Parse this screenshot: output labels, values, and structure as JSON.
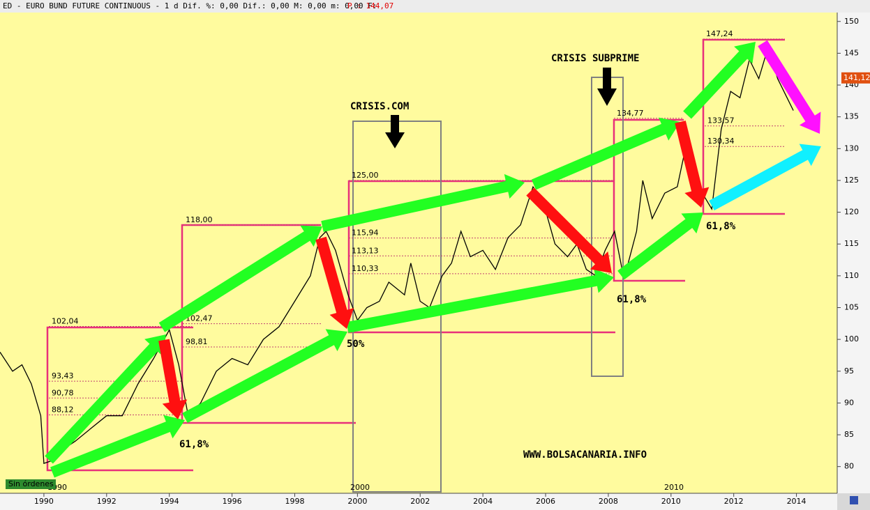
{
  "header": {
    "text": "ED - EURO BUND FUTURE CONTINUOUS -  1 d Dif. %: 0,00 Dif.: 0,00 M: 0,00 m: 0,00 F:",
    "price": "P : 144,07"
  },
  "status": "Sin órdenes",
  "chart_data": {
    "type": "line",
    "x": [
      1988.6,
      1989.0,
      1989.3,
      1989.6,
      1989.9,
      1990.0,
      1990.3,
      1990.7,
      1991.0,
      1991.5,
      1992.0,
      1992.5,
      1993.0,
      1993.5,
      1994.0,
      1994.3,
      1994.6,
      1995.0,
      1995.5,
      1996.0,
      1996.5,
      1997.0,
      1997.5,
      1998.0,
      1998.5,
      1998.8,
      1999.0,
      1999.3,
      1999.7,
      2000.0,
      2000.3,
      2000.7,
      2001.0,
      2001.5,
      2001.7,
      2002.0,
      2002.3,
      2002.7,
      2003.0,
      2003.3,
      2003.6,
      2004.0,
      2004.4,
      2004.8,
      2005.2,
      2005.6,
      2005.9,
      2006.3,
      2006.7,
      2007.0,
      2007.3,
      2007.6,
      2007.9,
      2008.2,
      2008.5,
      2008.9,
      2009.1,
      2009.4,
      2009.8,
      2010.2,
      2010.5,
      2010.8,
      2011.0,
      2011.3,
      2011.6,
      2011.9,
      2012.2,
      2012.5,
      2012.8,
      2013.1,
      2013.4,
      2013.7,
      2013.9
    ],
    "series": [
      {
        "name": "EURO BUND FUTURE CONTINUOUS",
        "color": "#000000",
        "values": [
          98,
          95,
          96,
          93,
          88,
          80.5,
          81,
          83,
          84,
          86,
          88,
          88,
          93,
          97,
          101.5,
          96,
          88,
          90,
          95,
          97,
          96,
          100,
          102,
          106,
          110,
          116,
          117,
          114,
          107,
          103,
          105,
          106,
          109,
          107,
          112,
          106,
          105,
          110,
          112,
          117,
          113,
          114,
          111,
          116,
          118,
          124,
          122,
          115,
          113,
          115,
          111,
          110,
          114,
          117,
          109.5,
          117,
          125,
          119,
          123,
          124,
          131,
          127,
          123,
          120.5,
          133,
          139,
          138,
          144,
          141,
          146,
          141,
          138,
          136
        ]
      }
    ],
    "xlim": [
      1988.6,
      2015.3
    ],
    "xticks": [
      1990,
      1992,
      1994,
      1996,
      1998,
      2000,
      2002,
      2004,
      2006,
      2008,
      2010,
      2012,
      2014
    ],
    "ylim": [
      75.8,
      151.4
    ],
    "yticks": [
      80,
      85,
      90,
      95,
      100,
      105,
      110,
      115,
      120,
      125,
      130,
      135,
      140,
      145,
      150
    ],
    "last_price": {
      "value": 141.12,
      "label": "141,12"
    },
    "levels": [
      {
        "value": 102.04,
        "label": "102,04"
      },
      {
        "value": 93.43,
        "label": "93,43"
      },
      {
        "value": 90.78,
        "label": "90,78"
      },
      {
        "value": 88.12,
        "label": "88,12"
      },
      {
        "value": 118.0,
        "label": "118,00"
      },
      {
        "value": 102.47,
        "label": "102,47"
      },
      {
        "value": 98.81,
        "label": "98,81"
      },
      {
        "value": 125.0,
        "label": "125,00"
      },
      {
        "value": 115.94,
        "label": "115,94"
      },
      {
        "value": 113.13,
        "label": "113,13"
      },
      {
        "value": 110.33,
        "label": "110,33"
      },
      {
        "value": 134.77,
        "label": "134,77"
      },
      {
        "value": 147.24,
        "label": "147,24"
      },
      {
        "value": 133.57,
        "label": "133,57"
      },
      {
        "value": 130.34,
        "label": "130,34"
      }
    ],
    "annotations": [
      "CRISIS.COM",
      "CRISIS SUBPRIME",
      "61,8%",
      "50%",
      "61,8%",
      "61,8%",
      "WWW.BOLSACANARIA.INFO",
      "1990",
      "2000",
      "2010"
    ]
  }
}
